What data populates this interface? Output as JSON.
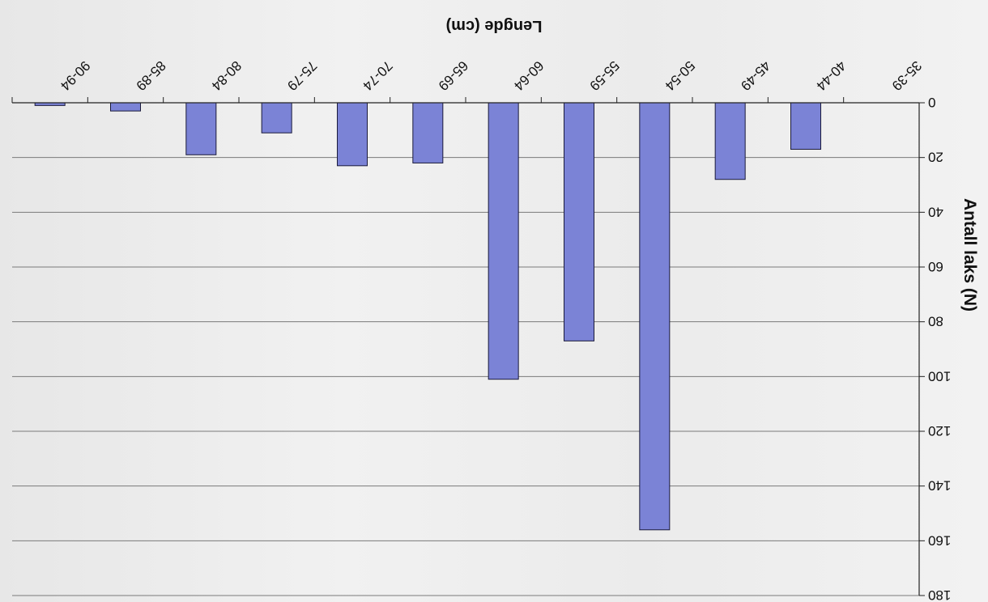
{
  "chart_data": {
    "type": "bar",
    "orientation": "vertical, image rotated 180 degrees",
    "categories": [
      "35-39",
      "40-44",
      "45-49",
      "50-54",
      "55-59",
      "60-64",
      "65-69",
      "70-74",
      "75-79",
      "80-84",
      "85-89",
      "90-94"
    ],
    "values": [
      0,
      17,
      28,
      156,
      87,
      101,
      22,
      23,
      11,
      19,
      3,
      1
    ],
    "xlabel": "Lengde (cm)",
    "ylabel": "Antall laks (N)",
    "ylim": [
      0,
      180
    ],
    "yticks": [
      0,
      20,
      40,
      60,
      80,
      100,
      120,
      140,
      160,
      180
    ],
    "grid": true,
    "legend": "none",
    "colors": {
      "bar": "#7b83d6",
      "bar_edge": "#1a1a3a",
      "grid": "#7a7a7a",
      "text": "#111111"
    }
  }
}
